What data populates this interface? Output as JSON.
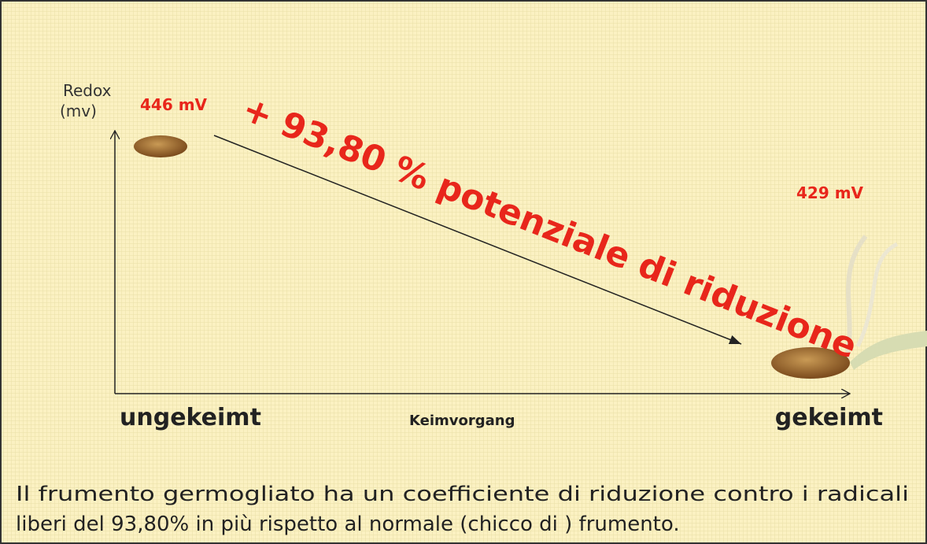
{
  "axis": {
    "y_label_line1": "Redox",
    "y_label_line2": "(mv)",
    "x_label": "Keimvorgang"
  },
  "start": {
    "value_label": "446 mV",
    "label": "ungekeimt"
  },
  "end": {
    "value_label": "429 mV",
    "label": "gekeimt"
  },
  "headline": "+ 93,80 % potenziale di riduzione",
  "caption": {
    "line1": "Il frumento germogliato ha un coefficiente di riduzione contro i radicali",
    "line2": "liberi del 93,80% in più rispetto al normale (chicco di ) frumento."
  }
}
